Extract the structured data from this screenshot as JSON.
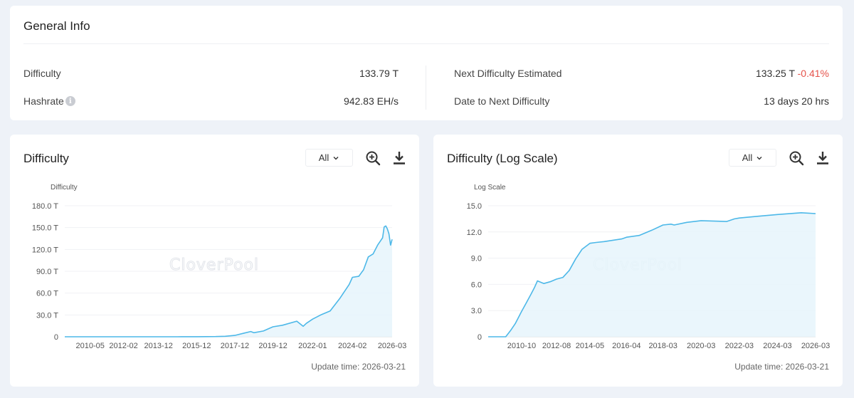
{
  "general_info": {
    "title": "General Info",
    "left": [
      {
        "label": "Difficulty",
        "value": "133.79 T"
      },
      {
        "label": "Hashrate",
        "value": "942.83 EH/s",
        "info_icon": "info-icon"
      }
    ],
    "right": [
      {
        "label": "Next Difficulty Estimated",
        "value": "133.25 T",
        "change": "-0.41%",
        "change_color": "#e5534b"
      },
      {
        "label": "Date to Next Difficulty",
        "value": "13 days 20 hrs"
      }
    ]
  },
  "charts": [
    {
      "title": "Difficulty",
      "range": "All",
      "update_time": "Update time: 2026-03-21",
      "watermark": "CloverPool"
    },
    {
      "title": "Difficulty (Log Scale)",
      "range": "All",
      "update_time": "Update time: 2026-03-21",
      "watermark": "CloverPool"
    }
  ],
  "chart_data": [
    {
      "type": "area",
      "ylabel": "Difficulty",
      "y_ticks": [
        "0",
        "30.0 T",
        "60.0 T",
        "90.0 T",
        "120.0 T",
        "150.0 T",
        "180.0 T"
      ],
      "ylim": [
        0,
        180
      ],
      "y_unit": "T",
      "x_ticks": [
        "2010-05",
        "2012-02",
        "2013-12",
        "2015-12",
        "2017-12",
        "2019-12",
        "2022-01",
        "2024-02",
        "2026-03"
      ],
      "xlim": [
        "2009-01",
        "2026-03"
      ],
      "grid": true,
      "line_color": "#4db8e8",
      "fill_color": "#e6f4fb",
      "series": [
        {
          "x": [
            "2009-01",
            "2010-05",
            "2012-02",
            "2013-12",
            "2014-12",
            "2015-12",
            "2016-12",
            "2017-06",
            "2017-12",
            "2018-06",
            "2018-10",
            "2018-12",
            "2019-06",
            "2019-12",
            "2020-06",
            "2021-03",
            "2021-07",
            "2021-09",
            "2022-01",
            "2022-06",
            "2022-12",
            "2023-06",
            "2023-12",
            "2024-02",
            "2024-06",
            "2024-09",
            "2024-12",
            "2025-03",
            "2025-06",
            "2025-09",
            "2025-10",
            "2025-11",
            "2025-12",
            "2026-01",
            "2026-02",
            "2026-03"
          ],
          "values": [
            0,
            0,
            0,
            0.01,
            0.04,
            0.1,
            0.3,
            0.7,
            1.9,
            5.1,
            7.2,
            5.6,
            7.9,
            13.7,
            15.8,
            21.4,
            14.4,
            18.4,
            24.3,
            29.9,
            35.4,
            52.4,
            72.0,
            81.7,
            83.1,
            92.0,
            109.8,
            113.8,
            126.4,
            136.0,
            150.8,
            152.3,
            148.2,
            141.7,
            125.9,
            133.8
          ]
        }
      ]
    },
    {
      "type": "area",
      "ylabel": "Log Scale",
      "y_ticks": [
        "0",
        "3.0",
        "6.0",
        "9.0",
        "12.0",
        "15.0"
      ],
      "ylim": [
        0,
        15
      ],
      "x_ticks": [
        "2010-10",
        "2012-08",
        "2014-05",
        "2016-04",
        "2018-03",
        "2020-03",
        "2022-03",
        "2024-03",
        "2026-03"
      ],
      "xlim": [
        "2009-01",
        "2026-03"
      ],
      "grid": true,
      "line_color": "#4db8e8",
      "fill_color": "#e6f4fb",
      "series": [
        {
          "x": [
            "2009-01",
            "2009-06",
            "2009-12",
            "2010-03",
            "2010-06",
            "2010-10",
            "2011-01",
            "2011-04",
            "2011-06",
            "2011-08",
            "2011-12",
            "2012-04",
            "2012-08",
            "2012-12",
            "2013-04",
            "2013-08",
            "2013-12",
            "2014-05",
            "2014-09",
            "2015-02",
            "2016-01",
            "2016-04",
            "2016-12",
            "2017-08",
            "2018-03",
            "2018-08",
            "2018-10",
            "2019-06",
            "2020-03",
            "2021-07",
            "2021-12",
            "2022-03",
            "2023-03",
            "2024-03",
            "2025-06",
            "2026-03"
          ],
          "values": [
            0,
            0,
            0,
            0.7,
            1.5,
            2.9,
            3.9,
            4.9,
            5.6,
            6.4,
            6.1,
            6.3,
            6.6,
            6.8,
            7.6,
            8.9,
            10.0,
            10.7,
            10.8,
            10.9,
            11.2,
            11.4,
            11.6,
            12.2,
            12.8,
            12.9,
            12.8,
            13.1,
            13.3,
            13.2,
            13.5,
            13.6,
            13.8,
            14.0,
            14.2,
            14.1
          ]
        }
      ]
    }
  ]
}
